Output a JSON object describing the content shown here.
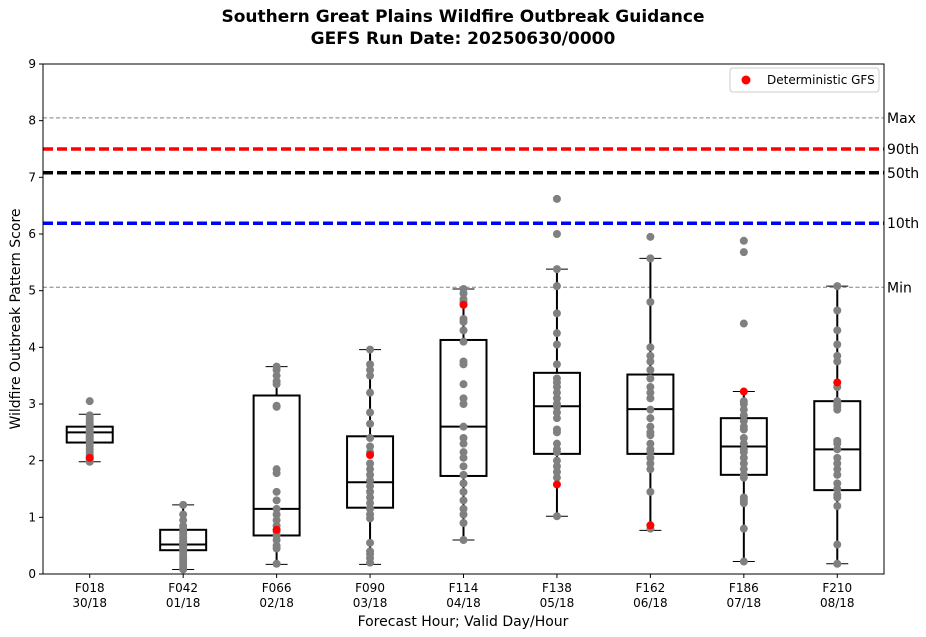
{
  "chart_data": {
    "type": "box",
    "title": [
      "Southern Great Plains Wildfire Outbreak Guidance",
      "GEFS Run Date: 20250630/0000"
    ],
    "xlabel": "Forecast Hour; Valid Day/Hour",
    "ylabel": "Wildfire Outbreak Pattern Score",
    "ylim": [
      0,
      9
    ],
    "yticks": [
      0,
      1,
      2,
      3,
      4,
      5,
      6,
      7,
      8,
      9
    ],
    "grid": false,
    "legend": {
      "position": "top-right",
      "entries": [
        {
          "label": "Deterministic GFS",
          "color": "#ff0000",
          "marker": "circle"
        }
      ]
    },
    "colors": {
      "members": "#808080",
      "deterministic": "#ff0000",
      "box": "#000000"
    },
    "reference_lines": [
      {
        "label": "Max",
        "value": 8.05,
        "color": "#808080",
        "style": "dashed-thin"
      },
      {
        "label": "90th",
        "value": 7.5,
        "color": "#ff0000",
        "style": "dashed-thick"
      },
      {
        "label": "50th",
        "value": 7.08,
        "color": "#000000",
        "style": "dashed-thick"
      },
      {
        "label": "10th",
        "value": 6.19,
        "color": "#0000ff",
        "style": "dashed-thick"
      },
      {
        "label": "Min",
        "value": 5.06,
        "color": "#808080",
        "style": "dashed-thin"
      }
    ],
    "categories": [
      {
        "hour": "F018",
        "valid": "30/18",
        "whisker_low": 1.98,
        "q1": 2.32,
        "median": 2.5,
        "q3": 2.6,
        "whisker_high": 2.82,
        "deterministic": 2.05,
        "members": [
          3.05,
          2.8,
          2.75,
          2.7,
          2.65,
          2.62,
          2.6,
          2.58,
          2.55,
          2.52,
          2.5,
          2.48,
          2.45,
          2.42,
          2.4,
          2.38,
          2.35,
          2.32,
          2.3,
          2.25,
          2.2,
          2.15,
          2.1,
          2.05,
          2.02,
          1.98
        ]
      },
      {
        "hour": "F042",
        "valid": "01/18",
        "whisker_low": 0.08,
        "q1": 0.42,
        "median": 0.52,
        "q3": 0.78,
        "whisker_high": 1.22,
        "deterministic": null,
        "members": [
          1.22,
          1.05,
          0.95,
          0.85,
          0.8,
          0.75,
          0.7,
          0.65,
          0.62,
          0.58,
          0.55,
          0.52,
          0.5,
          0.48,
          0.45,
          0.42,
          0.4,
          0.35,
          0.3,
          0.25,
          0.2,
          0.15,
          0.1,
          0.08
        ]
      },
      {
        "hour": "F066",
        "valid": "02/18",
        "whisker_low": 0.17,
        "q1": 0.68,
        "median": 1.15,
        "q3": 3.15,
        "whisker_high": 3.66,
        "deterministic": 0.78,
        "members": [
          3.66,
          3.6,
          3.5,
          3.4,
          3.35,
          2.97,
          2.95,
          1.85,
          1.78,
          1.45,
          1.3,
          1.15,
          1.05,
          0.95,
          0.85,
          0.75,
          0.68,
          0.6,
          0.5,
          0.45,
          0.18
        ]
      },
      {
        "hour": "F090",
        "valid": "03/18",
        "whisker_low": 0.17,
        "q1": 1.17,
        "median": 1.62,
        "q3": 2.43,
        "whisker_high": 3.96,
        "deterministic": 2.1,
        "members": [
          3.96,
          3.7,
          3.6,
          3.5,
          3.2,
          2.85,
          2.65,
          2.4,
          2.25,
          2.15,
          1.95,
          1.85,
          1.75,
          1.65,
          1.55,
          1.45,
          1.35,
          1.25,
          1.15,
          1.05,
          0.98,
          0.55,
          0.4,
          0.35,
          0.28,
          0.2
        ]
      },
      {
        "hour": "F114",
        "valid": "04/18",
        "whisker_low": 0.6,
        "q1": 1.73,
        "median": 2.6,
        "q3": 4.13,
        "whisker_high": 5.03,
        "deterministic": 4.75,
        "members": [
          5.03,
          4.95,
          4.85,
          4.8,
          4.5,
          4.45,
          4.3,
          4.1,
          3.75,
          3.7,
          3.35,
          3.1,
          3.0,
          2.6,
          2.4,
          2.3,
          2.15,
          2.05,
          1.9,
          1.75,
          1.6,
          1.45,
          1.3,
          1.15,
          1.05,
          0.9,
          0.6
        ]
      },
      {
        "hour": "F138",
        "valid": "05/18",
        "whisker_low": 1.02,
        "q1": 2.12,
        "median": 2.96,
        "q3": 3.55,
        "whisker_high": 5.38,
        "deterministic": 1.58,
        "members": [
          6.62,
          6.0,
          5.38,
          5.08,
          4.6,
          4.25,
          4.05,
          3.7,
          3.45,
          3.38,
          3.3,
          3.2,
          3.1,
          3.0,
          2.95,
          2.85,
          2.75,
          2.55,
          2.5,
          2.3,
          2.2,
          2.15,
          2.0,
          1.9,
          1.8,
          1.7,
          1.02
        ]
      },
      {
        "hour": "F162",
        "valid": "06/18",
        "whisker_low": 0.77,
        "q1": 2.12,
        "median": 2.91,
        "q3": 3.52,
        "whisker_high": 5.57,
        "deterministic": 0.86,
        "members": [
          5.95,
          5.57,
          4.8,
          4.0,
          3.85,
          3.75,
          3.6,
          3.45,
          3.3,
          3.2,
          3.1,
          2.9,
          2.75,
          2.6,
          2.5,
          2.45,
          2.3,
          2.2,
          2.15,
          2.05,
          1.95,
          1.85,
          1.45,
          0.8
        ]
      },
      {
        "hour": "F186",
        "valid": "07/18",
        "whisker_low": 0.22,
        "q1": 1.75,
        "median": 2.25,
        "q3": 2.75,
        "whisker_high": 3.22,
        "deterministic": 3.22,
        "members": [
          5.88,
          5.68,
          4.42,
          3.05,
          3.0,
          2.9,
          2.8,
          2.7,
          2.6,
          2.55,
          2.4,
          2.3,
          2.2,
          2.15,
          2.05,
          1.95,
          1.85,
          1.75,
          1.7,
          1.35,
          1.3,
          1.25,
          0.8,
          0.22
        ]
      },
      {
        "hour": "F210",
        "valid": "08/18",
        "whisker_low": 0.18,
        "q1": 1.48,
        "median": 2.2,
        "q3": 3.05,
        "whisker_high": 5.08,
        "deterministic": 3.38,
        "members": [
          5.08,
          4.65,
          4.3,
          4.05,
          3.85,
          3.75,
          3.3,
          3.05,
          3.0,
          2.95,
          2.9,
          2.35,
          2.3,
          2.2,
          2.05,
          1.95,
          1.85,
          1.75,
          1.6,
          1.5,
          1.4,
          1.35,
          1.2,
          0.52,
          0.18
        ]
      }
    ]
  }
}
